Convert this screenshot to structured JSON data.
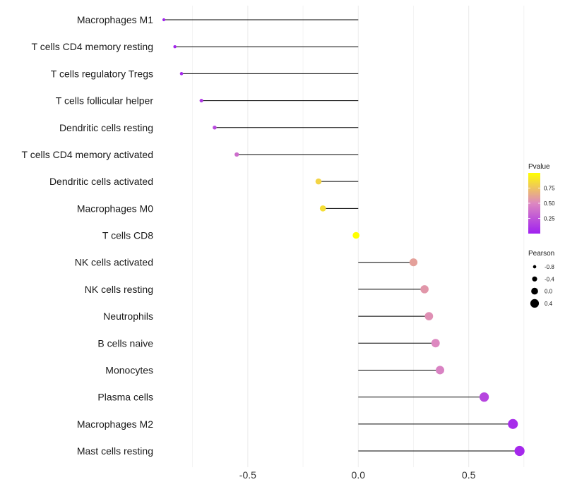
{
  "chart_data": {
    "type": "lollipop",
    "title": "",
    "xlabel": "",
    "ylabel": "",
    "xlim": [
      -0.88,
      0.76
    ],
    "xticks": [
      -0.5,
      0.0,
      0.5
    ],
    "xtick_labels": [
      "-0.5",
      "0.0",
      "0.5"
    ],
    "categories": [
      "Macrophages M1",
      "T cells CD4 memory resting",
      "T cells regulatory  Tregs",
      "T cells follicular helper",
      "Dendritic cells resting",
      "T cells CD4 memory activated",
      "Dendritic cells activated",
      "Macrophages M0",
      "T cells CD8",
      "NK cells activated",
      "NK cells resting",
      "Neutrophils",
      "B cells naive",
      "Monocytes",
      "Plasma cells",
      "Macrophages M2",
      "Mast cells resting"
    ],
    "pearson": [
      -0.88,
      -0.83,
      -0.8,
      -0.71,
      -0.65,
      -0.55,
      -0.18,
      -0.16,
      -0.01,
      0.25,
      0.3,
      0.32,
      0.35,
      0.37,
      0.57,
      0.7,
      0.73
    ],
    "pvalue": [
      0.01,
      0.03,
      0.04,
      0.12,
      0.2,
      0.37,
      0.82,
      0.86,
      1.0,
      0.6,
      0.56,
      0.53,
      0.5,
      0.47,
      0.18,
      0.06,
      0.04
    ],
    "legend": {
      "pvalue_title": "Pvalue",
      "pvalue_ticks": [
        0.25,
        0.5,
        0.75
      ],
      "pvalue_tick_labels": [
        "0.25",
        "0.50",
        "0.75"
      ],
      "pearson_title": "Pearson",
      "pearson_ticks": [
        -0.8,
        -0.4,
        0.0,
        0.4
      ],
      "pearson_tick_labels": [
        "-0.8",
        "-0.4",
        "0.0",
        "0.4"
      ],
      "placement": "right"
    },
    "colors": {
      "low": "#a020f0",
      "mid": "#dd88c0",
      "high": "#ffff00",
      "segment": "#000000",
      "grid": "#ececec"
    }
  }
}
